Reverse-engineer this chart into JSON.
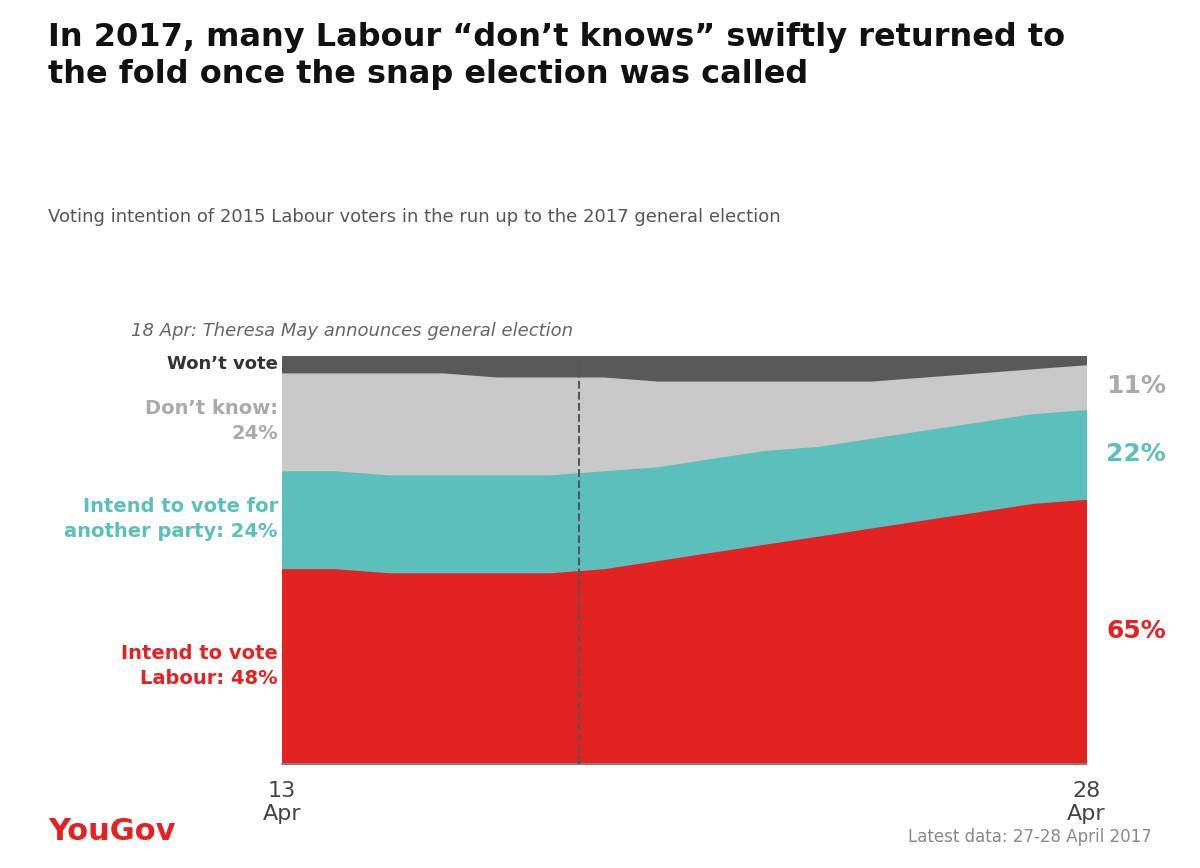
{
  "title_line1": "In 2017, many Labour “don’t knows” swiftly returned to",
  "title_line2": "the fold once the snap election was called",
  "subtitle": "Voting intention of 2015 Labour voters in the run up to the 2017 general election",
  "annotation": "18 Apr: Theresa May announces general election",
  "colours": {
    "labour": "#E32222",
    "other_party": "#5BBFBB",
    "dont_know": "#C8C8C8",
    "wont_vote": "#595959",
    "background": "#FFFFFF"
  },
  "end_labels": {
    "labour": "65%",
    "other_party": "22%",
    "dont_know": "11%"
  },
  "start_labels": {
    "labour": "Intend to vote\nLabour: 48%",
    "other_party": "Intend to vote for\nanother party: 24%",
    "dont_know": "Don’t know:\n24%",
    "wont_vote": "Won’t vote"
  },
  "x": [
    0.0,
    0.067,
    0.133,
    0.2,
    0.267,
    0.333,
    0.4,
    0.467,
    0.533,
    0.6,
    0.667,
    0.733,
    0.8,
    0.867,
    0.933,
    1.0
  ],
  "labour": [
    48,
    48,
    47,
    47,
    47,
    47,
    48,
    50,
    52,
    54,
    56,
    58,
    60,
    62,
    64,
    65
  ],
  "other_party": [
    24,
    24,
    24,
    24,
    24,
    24,
    24,
    23,
    23,
    23,
    22,
    22,
    22,
    22,
    22,
    22
  ],
  "dont_know": [
    24,
    24,
    25,
    25,
    24,
    24,
    23,
    21,
    19,
    17,
    16,
    14,
    13,
    12,
    11,
    11
  ],
  "wont_vote": [
    4,
    4,
    4,
    4,
    5,
    5,
    5,
    6,
    6,
    6,
    6,
    6,
    5,
    4,
    3,
    2
  ],
  "vline_x": 0.37,
  "yougov_color": "#E32222",
  "footer_text": "Latest data: 27-28 April 2017"
}
